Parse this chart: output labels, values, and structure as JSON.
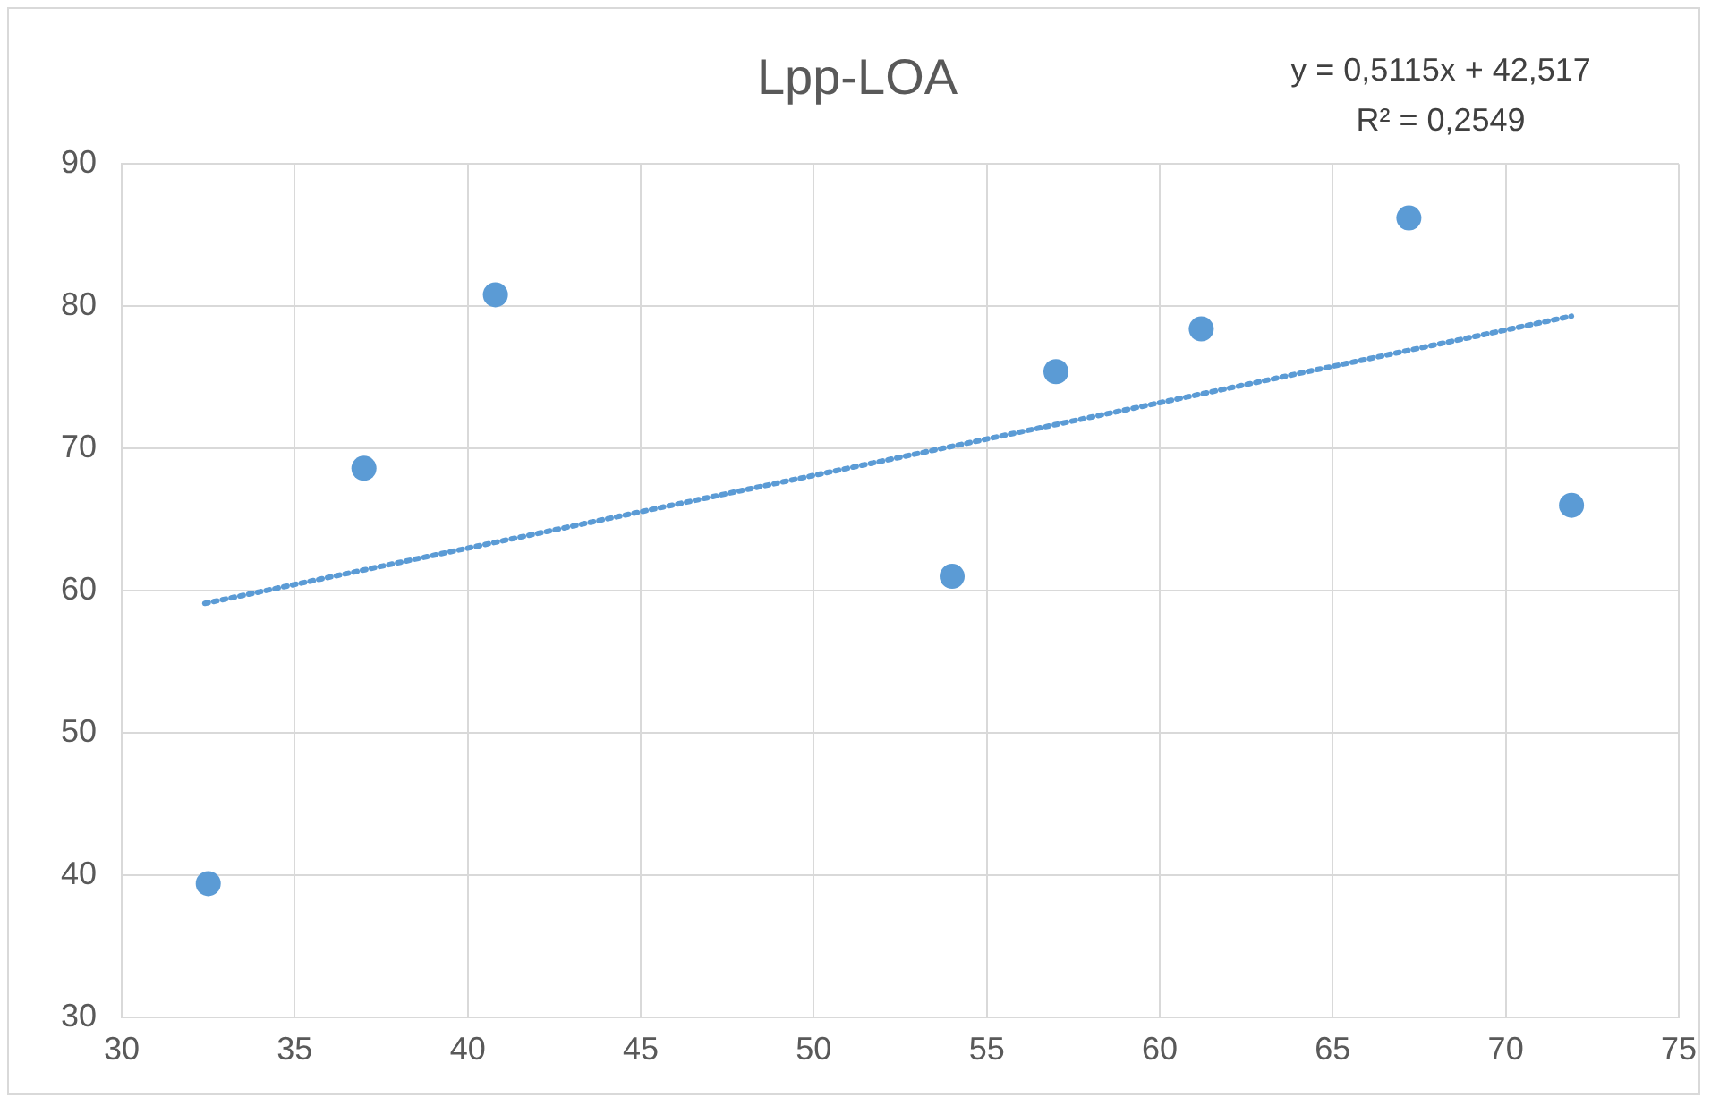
{
  "chart_data": {
    "type": "scatter",
    "title": "Lpp-LOA",
    "annotations": [
      "y = 0,5115x + 42,517",
      "R² = 0,2549"
    ],
    "xlim": [
      30,
      75
    ],
    "xticks": [
      30,
      35,
      40,
      45,
      50,
      55,
      60,
      65,
      70,
      75
    ],
    "ylim": [
      30,
      90
    ],
    "yticks": [
      30,
      40,
      50,
      60,
      70,
      80,
      90
    ],
    "grid": true,
    "legend": false,
    "series": [
      {
        "color": "#5b9bd5",
        "marker": "circle",
        "x": [
          32.5,
          37.0,
          40.8,
          54.0,
          57.0,
          61.2,
          67.2,
          71.9
        ],
        "values": [
          39.4,
          68.6,
          80.8,
          61.0,
          75.4,
          78.4,
          86.2,
          66.0
        ]
      },
      {
        "type": "line",
        "color": "#5b9bd5",
        "marker": "none",
        "line_style": "dotted",
        "x": [
          32.4,
          71.9
        ],
        "values": [
          59.1,
          79.3
        ]
      }
    ]
  }
}
